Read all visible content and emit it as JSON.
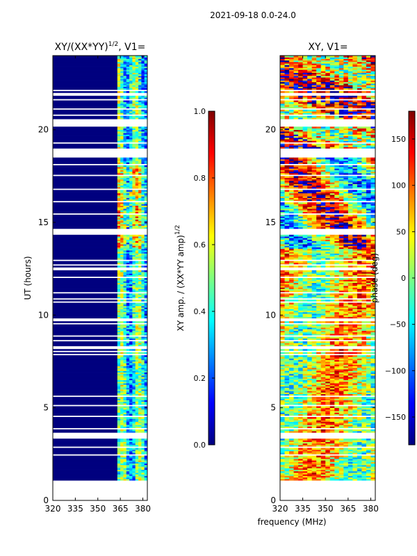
{
  "suptitle": "2021-09-18 0.0-24.0",
  "colors": {
    "jet": [
      "#00007f",
      "#0000ff",
      "#007fff",
      "#00ffff",
      "#7fff7f",
      "#ffff00",
      "#ff7f00",
      "#ff0000",
      "#7f0000"
    ],
    "axis": "#000000",
    "background": "#ffffff"
  },
  "chart_data": [
    {
      "type": "heatmap",
      "title": "XY/(XX*YY)",
      "title_sup": "1/2",
      "title_suffix": ", V1=",
      "xlabel": "",
      "ylabel": "UT (hours)",
      "xlim": [
        320,
        383
      ],
      "ylim": [
        0,
        24
      ],
      "xticks": [
        320,
        335,
        350,
        365,
        380
      ],
      "yticks": [
        0,
        5,
        10,
        15,
        20
      ],
      "data_start_hour": 1.0,
      "data_end_hour": 24.0,
      "signal_band_mhz": [
        363,
        383
      ],
      "colorbar": {
        "label": "XY amp. / (XX*YY amp)",
        "label_sup": "1/2",
        "range": [
          0.0,
          1.0
        ],
        "ticks": [
          "0.0",
          "0.2",
          "0.4",
          "0.6",
          "0.8",
          "1.0"
        ]
      }
    },
    {
      "type": "heatmap",
      "title": "XY, V1=",
      "xlabel": "frequency (MHz)",
      "ylabel": "",
      "xlim": [
        320,
        383
      ],
      "ylim": [
        0,
        24
      ],
      "xticks": [
        320,
        335,
        350,
        365,
        380
      ],
      "yticks": [
        0,
        5,
        10,
        15,
        20
      ],
      "data_start_hour": 1.0,
      "data_end_hour": 24.0,
      "colorbar": {
        "label": "phase (deg)",
        "range": [
          -180,
          180
        ],
        "ticks": [
          "150",
          "100",
          "50",
          "0",
          "−50",
          "−100",
          "−150"
        ]
      }
    }
  ]
}
